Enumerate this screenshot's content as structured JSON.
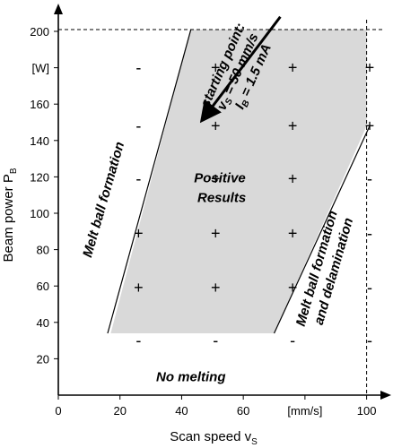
{
  "chart_data": {
    "type": "scatter",
    "xlabel": "Scan speed v",
    "xlabel_sub": "S",
    "ylabel": "Beam power P",
    "ylabel_sub": "B",
    "xlim": [
      0,
      102
    ],
    "ylim": [
      0,
      208
    ],
    "grid": false,
    "x_ticks": [
      {
        "value": 0,
        "label": "0"
      },
      {
        "value": 20,
        "label": "20"
      },
      {
        "value": 40,
        "label": "40"
      },
      {
        "value": 60,
        "label": "60"
      },
      {
        "value": 80,
        "label": "[mm/s]"
      },
      {
        "value": 100,
        "label": "100"
      }
    ],
    "y_ticks": [
      {
        "value": 20,
        "label": "20"
      },
      {
        "value": 40,
        "label": "40"
      },
      {
        "value": 60,
        "label": "60"
      },
      {
        "value": 80,
        "label": "80"
      },
      {
        "value": 100,
        "label": "100"
      },
      {
        "value": 120,
        "label": "120"
      },
      {
        "value": 140,
        "label": "140"
      },
      {
        "value": 160,
        "label": "160"
      },
      {
        "value": 180,
        "label": "[W]"
      },
      {
        "value": 200,
        "label": "200"
      }
    ],
    "reference_lines": [
      {
        "orientation": "horizontal",
        "value": 201
      },
      {
        "orientation": "vertical",
        "value": 100
      }
    ],
    "positive_region_polygon": [
      {
        "x": 43,
        "y": 201
      },
      {
        "x": 100,
        "y": 201
      },
      {
        "x": 100,
        "y": 148
      },
      {
        "x": 70,
        "y": 34
      },
      {
        "x": 17,
        "y": 34
      }
    ],
    "boundary_lines": [
      {
        "from": {
          "x": 16,
          "y": 34
        },
        "to": {
          "x": 43,
          "y": 201
        }
      },
      {
        "from": {
          "x": 70,
          "y": 34
        },
        "to": {
          "x": 101,
          "y": 148
        }
      }
    ],
    "points": [
      {
        "x": 26,
        "y": 180,
        "label": "-"
      },
      {
        "x": 51,
        "y": 180,
        "label": "+"
      },
      {
        "x": 76,
        "y": 180,
        "label": "+"
      },
      {
        "x": 101,
        "y": 180,
        "label": "+"
      },
      {
        "x": 26,
        "y": 148,
        "label": "-"
      },
      {
        "x": 51,
        "y": 148,
        "label": "+"
      },
      {
        "x": 76,
        "y": 148,
        "label": "+"
      },
      {
        "x": 101,
        "y": 148,
        "label": "+"
      },
      {
        "x": 26,
        "y": 119,
        "label": "-"
      },
      {
        "x": 51,
        "y": 119,
        "label": "+"
      },
      {
        "x": 76,
        "y": 119,
        "label": "+"
      },
      {
        "x": 101,
        "y": 119,
        "label": "-"
      },
      {
        "x": 26,
        "y": 89,
        "label": "+"
      },
      {
        "x": 51,
        "y": 89,
        "label": "+"
      },
      {
        "x": 76,
        "y": 89,
        "label": "+"
      },
      {
        "x": 101,
        "y": 89,
        "label": "-"
      },
      {
        "x": 26,
        "y": 59,
        "label": "+"
      },
      {
        "x": 51,
        "y": 59,
        "label": "+"
      },
      {
        "x": 76,
        "y": 59,
        "label": "+"
      },
      {
        "x": 101,
        "y": 59,
        "label": "-"
      },
      {
        "x": 26,
        "y": 30,
        "label": "-"
      },
      {
        "x": 51,
        "y": 30,
        "label": "-"
      },
      {
        "x": 76,
        "y": 30,
        "label": "-"
      },
      {
        "x": 101,
        "y": 30,
        "label": "-"
      }
    ],
    "region_labels": {
      "positive_line1": "Positive",
      "positive_line2": "Results",
      "no_melting": "No melting",
      "melt_ball": "Melt ball formation",
      "melt_ball_delam_line1": "Melt ball formation",
      "melt_ball_delam_line2": "and delamination"
    },
    "annotation": {
      "line1": "starting point:",
      "line2_main": "v",
      "line2_sub": "S",
      "line2_rest": " = 50 mm/s",
      "line3_main": "I",
      "line3_sub": "B",
      "line3_rest": " = 1.5 mA",
      "arrow_from": {
        "x": 72,
        "y": 208
      },
      "arrow_to": {
        "x": 47,
        "y": 152
      }
    },
    "colors": {
      "region_fill": "#d9d9d9",
      "axis": "#000000"
    }
  }
}
